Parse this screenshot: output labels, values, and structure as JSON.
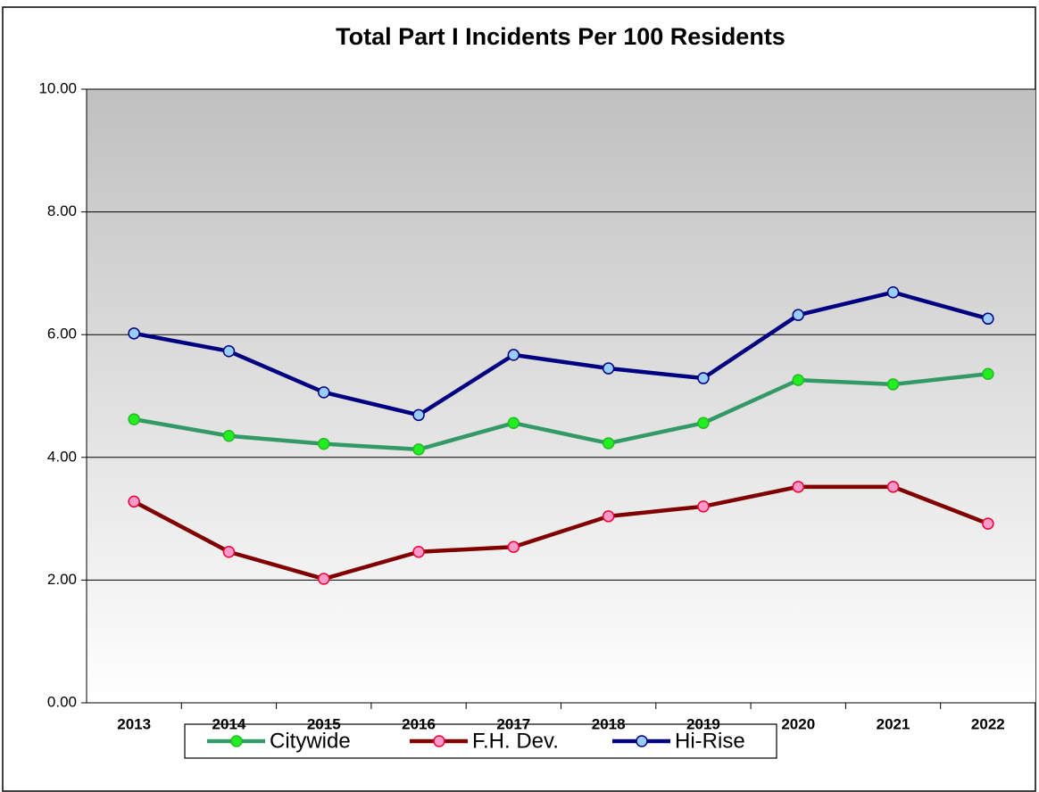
{
  "chart_data": {
    "type": "line",
    "title": "Total Part I Incidents Per 100 Residents",
    "categories": [
      "2013",
      "2014",
      "2015",
      "2016",
      "2017",
      "2018",
      "2019",
      "2020",
      "2021",
      "2022"
    ],
    "series": [
      {
        "name": "Citywide",
        "color": "#339966",
        "marker_color": "#22ee22",
        "marker_edge": "#22bb22",
        "values": [
          4.62,
          4.35,
          4.22,
          4.13,
          4.56,
          4.23,
          4.56,
          5.26,
          5.19,
          5.36
        ]
      },
      {
        "name": "F.H. Dev.",
        "color": "#800000",
        "marker_color": "#ff99cc",
        "marker_edge": "#ee0033",
        "values": [
          3.28,
          2.46,
          2.02,
          2.46,
          2.54,
          3.04,
          3.2,
          3.52,
          3.52,
          2.92
        ]
      },
      {
        "name": "Hi-Rise",
        "color": "#000080",
        "marker_color": "#99ccff",
        "marker_edge": "#000080",
        "values": [
          6.02,
          5.73,
          5.06,
          4.69,
          5.67,
          5.45,
          5.29,
          6.32,
          6.69,
          6.26
        ]
      }
    ],
    "ylim": [
      0,
      10
    ],
    "yticks": [
      {
        "value": 0,
        "label": "0.00"
      },
      {
        "value": 2,
        "label": "2.00"
      },
      {
        "value": 4,
        "label": "4.00"
      },
      {
        "value": 6,
        "label": "6.00"
      },
      {
        "value": 8,
        "label": "8.00"
      },
      {
        "value": 10,
        "label": "10.00"
      }
    ],
    "grid": true,
    "legend": "bottom"
  }
}
